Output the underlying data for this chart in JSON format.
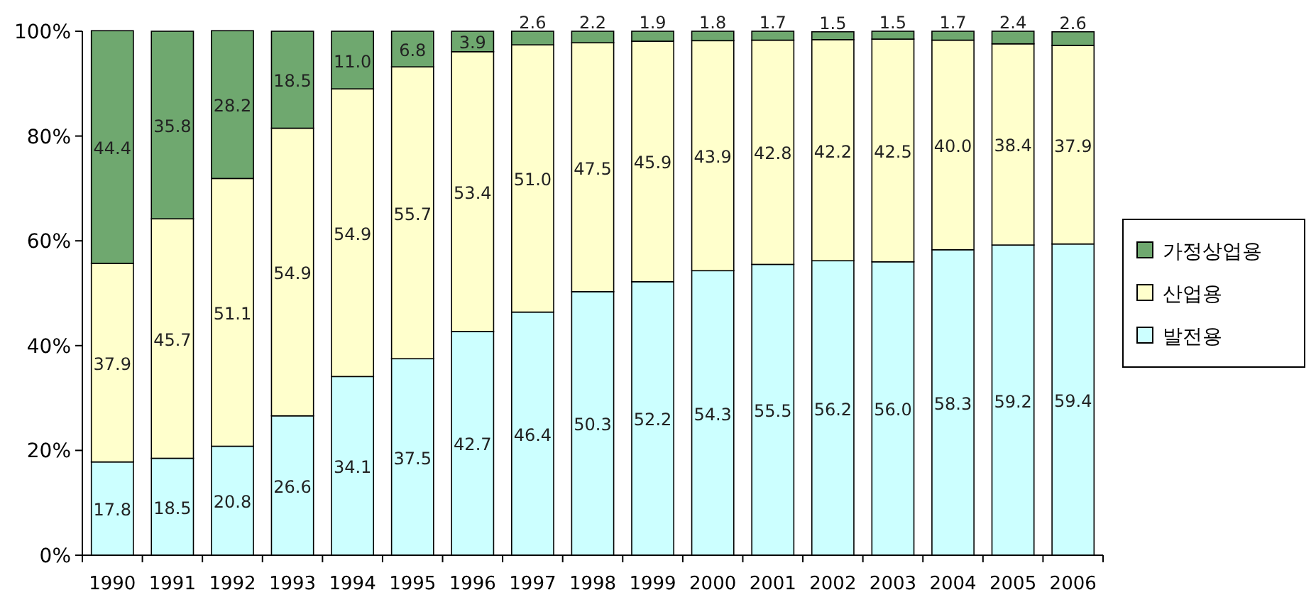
{
  "chart_data": {
    "type": "bar",
    "stacked": true,
    "categories": [
      "1990",
      "1991",
      "1992",
      "1993",
      "1994",
      "1995",
      "1996",
      "1997",
      "1998",
      "1999",
      "2000",
      "2001",
      "2002",
      "2003",
      "2004",
      "2005",
      "2006"
    ],
    "series": [
      {
        "name": "발전용",
        "color": "#ccffff",
        "values": [
          17.8,
          18.5,
          20.8,
          26.6,
          34.1,
          37.5,
          42.7,
          46.4,
          50.3,
          52.2,
          54.3,
          55.5,
          56.2,
          56.0,
          58.3,
          59.2,
          59.4
        ],
        "value_labels": [
          "17.8",
          "18.5",
          "20.8",
          "26.6",
          "34.1",
          "37.5",
          "42.7",
          "46.4",
          "50.3",
          "52.2",
          "54.3",
          "55.5",
          "56.2",
          "56.0",
          "58.3",
          "59.2",
          "59.4"
        ]
      },
      {
        "name": "산업용",
        "color": "#ffffcc",
        "values": [
          37.9,
          45.7,
          51.1,
          54.9,
          54.9,
          55.7,
          53.4,
          51.0,
          47.5,
          45.9,
          43.9,
          42.8,
          42.2,
          42.5,
          40.0,
          38.4,
          37.9
        ],
        "value_labels": [
          "37.9",
          "45.7",
          "51.1",
          "54.9",
          "54.9",
          "55.7",
          "53.4",
          "51.0",
          "47.5",
          "45.9",
          "43.9",
          "42.8",
          "42.2",
          "42.5",
          "40.0",
          "38.4",
          "37.9"
        ]
      },
      {
        "name": "가정상업용",
        "color": "#6fa86f",
        "values": [
          44.4,
          35.8,
          28.2,
          18.5,
          11.0,
          6.8,
          3.9,
          2.6,
          2.2,
          1.9,
          1.8,
          1.7,
          1.5,
          1.5,
          1.7,
          2.4,
          2.6
        ],
        "value_labels": [
          "44.4",
          "35.8",
          "28.2",
          "18.5",
          "11.0",
          "6.8",
          "3.9",
          "2.6",
          "2.2",
          "1.9",
          "1.8",
          "1.7",
          "1.5",
          "1.5",
          "1.7",
          "2.4",
          "2.6"
        ]
      }
    ],
    "ylim": [
      0,
      100
    ],
    "yticks": [
      {
        "value": 0,
        "label": "0%"
      },
      {
        "value": 20,
        "label": "20%"
      },
      {
        "value": 40,
        "label": "40%"
      },
      {
        "value": 60,
        "label": "60%"
      },
      {
        "value": 80,
        "label": "80%"
      },
      {
        "value": 100,
        "label": "100%"
      }
    ],
    "legend": "right"
  }
}
